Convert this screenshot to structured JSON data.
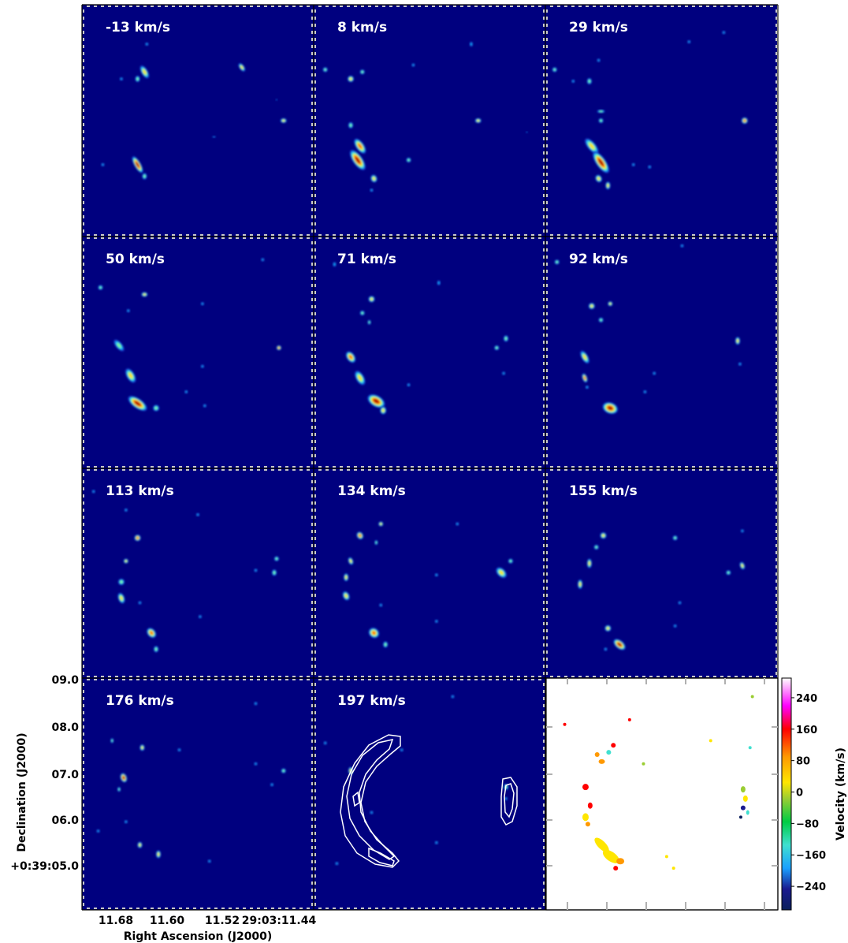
{
  "chart_data": {
    "type": "channel_maps",
    "panel_labels": [
      "-13 km/s",
      "8 km/s",
      "29 km/s",
      "50 km/s",
      "71 km/s",
      "92 km/s",
      "113 km/s",
      "134 km/s",
      "155 km/s",
      "176 km/s",
      "197 km/s"
    ],
    "channel_velocities_kms": [
      -13,
      8,
      29,
      50,
      71,
      92,
      113,
      134,
      155,
      176,
      197
    ],
    "xlabel": "Right Ascension (J2000)",
    "ylabel": "Declination (J2000)",
    "x_ticklabels": [
      "11.68",
      "11.60",
      "11.52",
      "29:03:11.44"
    ],
    "y_ticklabels": [
      "09.0",
      "08.0",
      "07.0",
      "06.0",
      "+0:39:05.0"
    ],
    "colormap": "jet",
    "background_color": "#00007f",
    "contour_panel": "197 km/s",
    "contour_color": "#ffffff",
    "moment_map": {
      "colorbar_label": "Velocity (km/s)",
      "colorbar_ticks": [
        "240",
        "160",
        "80",
        "0",
        "−80",
        "−160",
        "−240"
      ],
      "tick_values": [
        240,
        160,
        80,
        0,
        -80,
        -160,
        -240
      ],
      "range": [
        -300,
        290
      ],
      "colors": [
        "#0a1f5c",
        "#1aa0ff",
        "#40e0d0",
        "#00cc44",
        "#9acd32",
        "#ffe600",
        "#ff9900",
        "#ff0000",
        "#ff00ff",
        "#ffffff"
      ]
    }
  }
}
